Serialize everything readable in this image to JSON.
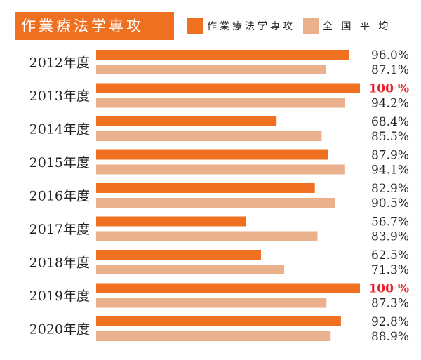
{
  "colors": {
    "program": "#f07021",
    "national": "#ebb08c",
    "highlight": "#e8252f",
    "text": "#222222"
  },
  "chart_data": {
    "type": "bar",
    "orientation": "horizontal",
    "title": "作業療法学専攻",
    "legend_position": "top",
    "grid": false,
    "xlim": [
      0,
      100
    ],
    "categories": [
      "2012年度",
      "2013年度",
      "2014年度",
      "2015年度",
      "2016年度",
      "2017年度",
      "2018年度",
      "2019年度",
      "2020年度"
    ],
    "series": [
      {
        "name": "作業療法学専攻",
        "values": [
          96.0,
          100,
          68.4,
          87.9,
          82.9,
          56.7,
          62.5,
          100,
          92.8
        ],
        "labels": [
          "96.0%",
          "100 %",
          "68.4%",
          "87.9%",
          "82.9%",
          "56.7%",
          "62.5%",
          "100 %",
          "92.8%"
        ]
      },
      {
        "name": "全 国 平 均",
        "values": [
          87.1,
          94.2,
          85.5,
          94.1,
          90.5,
          83.9,
          71.3,
          87.3,
          88.9
        ],
        "labels": [
          "87.1%",
          "94.2%",
          "85.5%",
          "94.1%",
          "90.5%",
          "83.9%",
          "71.3%",
          "87.3%",
          "88.9%"
        ]
      }
    ]
  }
}
